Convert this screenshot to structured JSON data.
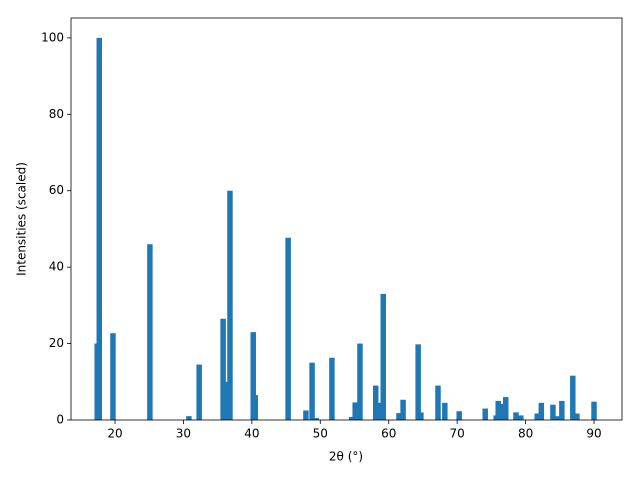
{
  "chart_data": {
    "type": "bar",
    "x_label": "2θ (°)",
    "y_label": "Intensities (scaled)",
    "x": [
      17.4,
      17.7,
      19.7,
      25.1,
      30.8,
      32.3,
      35.8,
      36.1,
      36.8,
      40.2,
      40.5,
      45.3,
      47.9,
      48.8,
      49.4,
      51.7,
      54.6,
      55.1,
      55.8,
      58.1,
      58.7,
      59.2,
      61.5,
      62.1,
      64.3,
      64.7,
      67.2,
      68.2,
      70.3,
      74.1,
      75.7,
      76.0,
      76.6,
      77.1,
      78.6,
      79.3,
      81.7,
      82.3,
      84.0,
      84.6,
      85.3,
      86.9,
      87.5,
      90.0
    ],
    "values": [
      20,
      100,
      22.7,
      46,
      1,
      14.5,
      26.5,
      10,
      60,
      23,
      6.5,
      47.7,
      2.5,
      15,
      0.5,
      16.3,
      0.8,
      4.6,
      20,
      9,
      4.5,
      33,
      1.8,
      5.3,
      19.8,
      2,
      9,
      4.5,
      2.3,
      3,
      1.2,
      5,
      4.2,
      6,
      2,
      1.2,
      1.7,
      4.5,
      4,
      1,
      5,
      11.6,
      1.7,
      4.8
    ],
    "color": "#1f77b4",
    "xlim": [
      13.57,
      94.09
    ],
    "ylim": [
      0,
      105.2
    ],
    "xticks": [
      20,
      30,
      40,
      50,
      60,
      70,
      80,
      90
    ],
    "yticks": [
      0,
      20,
      40,
      60,
      80,
      100
    ]
  }
}
